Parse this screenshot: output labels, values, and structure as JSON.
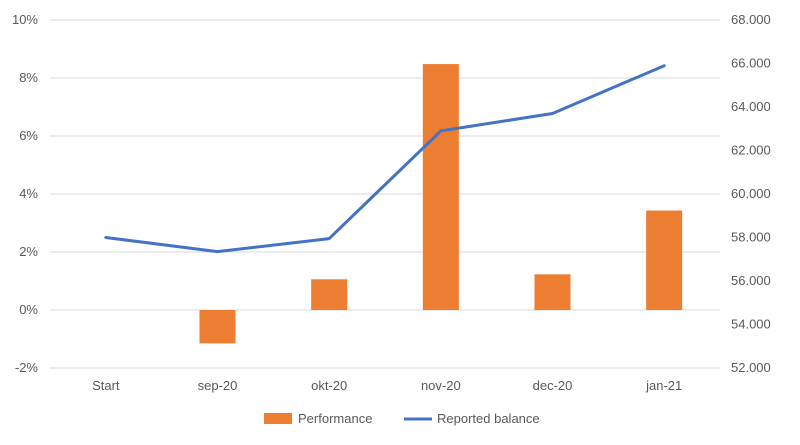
{
  "chart_data": {
    "type": "bar",
    "categories": [
      "Start",
      "sep-20",
      "okt-20",
      "nov-20",
      "dec-20",
      "jan-21"
    ],
    "series": [
      {
        "name": "Performance",
        "type": "bar",
        "axis": "left",
        "color": "#ED7D31",
        "values": [
          null,
          -0.0115,
          0.0106,
          0.0848,
          0.0123,
          0.0343
        ]
      },
      {
        "name": "Reported balance",
        "type": "line",
        "axis": "right",
        "color": "#4472C4",
        "values": [
          58000,
          57350,
          57950,
          62900,
          63700,
          65900
        ]
      }
    ],
    "y_left": {
      "range": [
        -0.02,
        0.1
      ],
      "ticks": [
        -0.02,
        0,
        0.02,
        0.04,
        0.06,
        0.08,
        0.1
      ],
      "tick_labels": [
        "-2%",
        "0%",
        "2%",
        "4%",
        "6%",
        "8%",
        "10%"
      ]
    },
    "y_right": {
      "range": [
        52000,
        68000
      ],
      "ticks": [
        52000,
        54000,
        56000,
        58000,
        60000,
        62000,
        64000,
        66000,
        68000
      ],
      "tick_labels": [
        "52.000",
        "54.000",
        "56.000",
        "58.000",
        "60.000",
        "62.000",
        "64.000",
        "66.000",
        "68.000"
      ]
    },
    "grid": true,
    "legend": "bottom",
    "title": "",
    "xlabel": "",
    "ylabel": ""
  }
}
